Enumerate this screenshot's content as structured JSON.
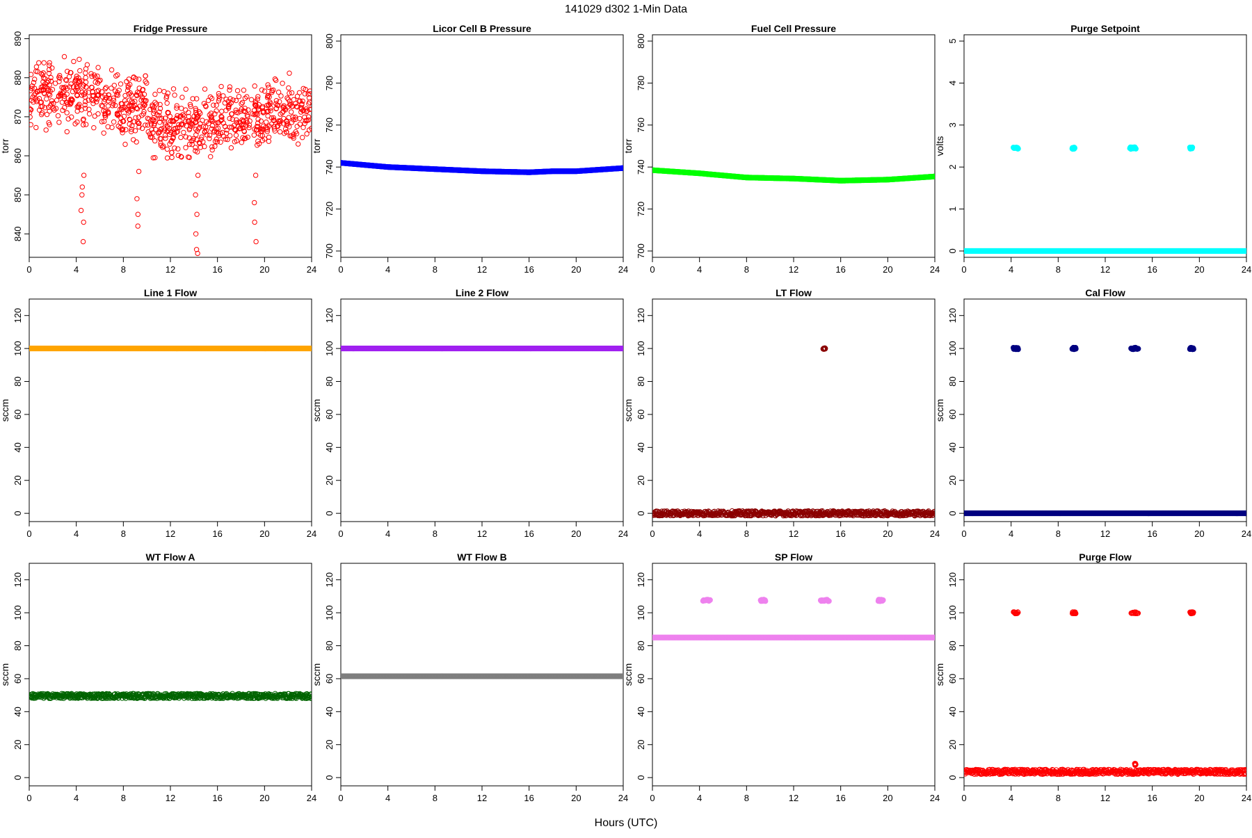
{
  "figure": {
    "title": "141029   d302   1-Min Data",
    "xlabel": "Hours (UTC)"
  },
  "chart_data": [
    {
      "type": "scatter",
      "title": "Fridge Pressure",
      "ylabel": "torr",
      "xlim": [
        0,
        24
      ],
      "ylim": [
        834,
        891
      ],
      "xticks": [
        0,
        4,
        8,
        12,
        16,
        20,
        24
      ],
      "yticks": [
        840,
        850,
        860,
        870,
        880,
        890
      ],
      "color": "#ff0000",
      "marker": "open-circle",
      "series": [
        {
          "segments": [
            {
              "x": [
                0,
                6
              ],
              "y": [
                876,
                876
              ]
            },
            {
              "x": [
                6,
                10
              ],
              "y": [
                873,
                873
              ]
            },
            {
              "x": [
                10,
                14
              ],
              "y": [
                868,
                868
              ]
            },
            {
              "x": [
                14,
                16
              ],
              "y": [
                867,
                867
              ]
            },
            {
              "x": [
                16,
                20
              ],
              "y": [
                869,
                869
              ]
            },
            {
              "x": [
                20,
                24
              ],
              "y": [
                871,
                871
              ]
            }
          ],
          "spread": 6,
          "outliers": [
            {
              "x": 4.5,
              "y": [
                855,
                852,
                850,
                846,
                843,
                838
              ]
            },
            {
              "x": 9.3,
              "y": [
                856,
                849,
                845,
                842
              ]
            },
            {
              "x": 14.2,
              "y": [
                855,
                850,
                845,
                840,
                836,
                835
              ]
            },
            {
              "x": 19.2,
              "y": [
                855,
                848,
                843,
                838
              ]
            }
          ]
        }
      ]
    },
    {
      "type": "scatter",
      "title": "Licor Cell B Pressure",
      "ylabel": "torr",
      "xlim": [
        0,
        24
      ],
      "ylim": [
        697,
        803
      ],
      "xticks": [
        0,
        4,
        8,
        12,
        16,
        20,
        24
      ],
      "yticks": [
        700,
        720,
        740,
        760,
        780,
        800
      ],
      "color": "#0000ff",
      "marker": "filled-circle",
      "series": [
        {
          "x": [
            0,
            4,
            8,
            12,
            16,
            18,
            20,
            24
          ],
          "y": [
            742,
            740,
            739,
            738,
            737.5,
            738,
            738,
            739.5
          ]
        }
      ]
    },
    {
      "type": "scatter",
      "title": "Fuel Cell Pressure",
      "ylabel": "torr",
      "xlim": [
        0,
        24
      ],
      "ylim": [
        697,
        803
      ],
      "xticks": [
        0,
        4,
        8,
        12,
        16,
        20,
        24
      ],
      "yticks": [
        700,
        720,
        740,
        760,
        780,
        800
      ],
      "color": "#00ff00",
      "marker": "filled-circle",
      "series": [
        {
          "x": [
            0,
            4,
            8,
            12,
            16,
            20,
            24
          ],
          "y": [
            738.5,
            737,
            735,
            734.5,
            733.5,
            734,
            735.5
          ]
        }
      ]
    },
    {
      "type": "scatter",
      "title": "Purge Setpoint",
      "ylabel": "volts",
      "xlim": [
        0,
        24
      ],
      "ylim": [
        -0.15,
        5.15
      ],
      "xticks": [
        0,
        4,
        8,
        12,
        16,
        20,
        24
      ],
      "yticks": [
        0,
        1,
        2,
        3,
        4,
        5
      ],
      "color": "#00ffff",
      "marker": "filled-circle",
      "series": [
        {
          "x": [
            0,
            24
          ],
          "y": [
            0,
            0
          ]
        },
        {
          "clusters": [
            {
              "x": [
                4.2,
                4.6
              ],
              "y": 2.45
            },
            {
              "x": [
                9.2,
                9.4
              ],
              "y": 2.45
            },
            {
              "x": [
                14.1,
                14.6
              ],
              "y": 2.45
            },
            {
              "x": [
                19.2,
                19.4
              ],
              "y": 2.45
            }
          ]
        }
      ]
    },
    {
      "type": "scatter",
      "title": "Line 1 Flow",
      "ylabel": "sccm",
      "xlim": [
        0,
        24
      ],
      "ylim": [
        -5,
        130
      ],
      "xticks": [
        0,
        4,
        8,
        12,
        16,
        20,
        24
      ],
      "yticks": [
        0,
        20,
        40,
        60,
        80,
        100,
        120
      ],
      "color": "#ffa500",
      "marker": "filled-circle",
      "series": [
        {
          "x": [
            0,
            24
          ],
          "y": [
            100,
            100
          ]
        }
      ]
    },
    {
      "type": "scatter",
      "title": "Line 2 Flow",
      "ylabel": "sccm",
      "xlim": [
        0,
        24
      ],
      "ylim": [
        -5,
        130
      ],
      "xticks": [
        0,
        4,
        8,
        12,
        16,
        20,
        24
      ],
      "yticks": [
        0,
        20,
        40,
        60,
        80,
        100,
        120
      ],
      "color": "#a020f0",
      "marker": "filled-circle",
      "series": [
        {
          "x": [
            0,
            24
          ],
          "y": [
            100,
            100
          ]
        }
      ]
    },
    {
      "type": "scatter",
      "title": "LT Flow",
      "ylabel": "sccm",
      "xlim": [
        0,
        24
      ],
      "ylim": [
        -5,
        130
      ],
      "xticks": [
        0,
        4,
        8,
        12,
        16,
        20,
        24
      ],
      "yticks": [
        0,
        20,
        40,
        60,
        80,
        100,
        120
      ],
      "color": "#8b0000",
      "marker": "open-circle",
      "series": [
        {
          "x": [
            0,
            24
          ],
          "y": [
            0,
            0
          ],
          "spread": 1.5
        },
        {
          "clusters": [
            {
              "x": [
                14.5,
                14.7
              ],
              "y": 100
            }
          ]
        }
      ]
    },
    {
      "type": "scatter",
      "title": "Cal Flow",
      "ylabel": "sccm",
      "xlim": [
        0,
        24
      ],
      "ylim": [
        -5,
        130
      ],
      "xticks": [
        0,
        4,
        8,
        12,
        16,
        20,
        24
      ],
      "yticks": [
        0,
        20,
        40,
        60,
        80,
        100,
        120
      ],
      "color": "#000080",
      "marker": "filled-circle",
      "series": [
        {
          "x": [
            0,
            24
          ],
          "y": [
            0,
            0
          ]
        },
        {
          "clusters": [
            {
              "x": [
                4.2,
                4.6
              ],
              "y": 100
            },
            {
              "x": [
                9.2,
                9.5
              ],
              "y": 100
            },
            {
              "x": [
                14.2,
                14.8
              ],
              "y": 100
            },
            {
              "x": [
                19.2,
                19.5
              ],
              "y": 100
            }
          ]
        }
      ]
    },
    {
      "type": "scatter",
      "title": "WT Flow A",
      "ylabel": "sccm",
      "xlim": [
        0,
        24
      ],
      "ylim": [
        -5,
        130
      ],
      "xticks": [
        0,
        4,
        8,
        12,
        16,
        20,
        24
      ],
      "yticks": [
        0,
        20,
        40,
        60,
        80,
        100,
        120
      ],
      "color": "#006400",
      "marker": "open-circle",
      "series": [
        {
          "x": [
            0,
            24
          ],
          "y": [
            49.5,
            49.5
          ],
          "spread": 1.5
        }
      ]
    },
    {
      "type": "scatter",
      "title": "WT Flow B",
      "ylabel": "sccm",
      "xlim": [
        0,
        24
      ],
      "ylim": [
        -5,
        130
      ],
      "xticks": [
        0,
        4,
        8,
        12,
        16,
        20,
        24
      ],
      "yticks": [
        0,
        20,
        40,
        60,
        80,
        100,
        120
      ],
      "color": "#7f7f7f",
      "marker": "filled-circle",
      "series": [
        {
          "x": [
            0,
            24
          ],
          "y": [
            61.5,
            61.5
          ]
        }
      ]
    },
    {
      "type": "scatter",
      "title": "SP Flow",
      "ylabel": "sccm",
      "xlim": [
        0,
        24
      ],
      "ylim": [
        -5,
        130
      ],
      "xticks": [
        0,
        4,
        8,
        12,
        16,
        20,
        24
      ],
      "yticks": [
        0,
        20,
        40,
        60,
        80,
        100,
        120
      ],
      "color": "#ee82ee",
      "marker": "filled-circle",
      "series": [
        {
          "x": [
            0,
            24
          ],
          "y": [
            85,
            85
          ]
        },
        {
          "clusters": [
            {
              "x": [
                4.3,
                4.9
              ],
              "y": 107.5
            },
            {
              "x": [
                9.2,
                9.6
              ],
              "y": 107.5
            },
            {
              "x": [
                14.3,
                15.0
              ],
              "y": 107.5
            },
            {
              "x": [
                19.2,
                19.6
              ],
              "y": 107.5
            }
          ]
        }
      ]
    },
    {
      "type": "scatter",
      "title": "Purge Flow",
      "ylabel": "sccm",
      "xlim": [
        0,
        24
      ],
      "ylim": [
        -5,
        130
      ],
      "xticks": [
        0,
        4,
        8,
        12,
        16,
        20,
        24
      ],
      "yticks": [
        0,
        20,
        40,
        60,
        80,
        100,
        120
      ],
      "color": "#ff0000",
      "marker": "open-circle",
      "series": [
        {
          "x": [
            0,
            24
          ],
          "y": [
            3.5,
            3.5
          ],
          "spread": 1.5
        },
        {
          "clusters": [
            {
              "x": [
                4.2,
                4.6
              ],
              "y": 100
            },
            {
              "x": [
                9.2,
                9.5
              ],
              "y": 100
            },
            {
              "x": [
                14.2,
                14.8
              ],
              "y": 100
            },
            {
              "x": [
                19.2,
                19.5
              ],
              "y": 100
            }
          ]
        },
        {
          "clusters": [
            {
              "x": [
                14.5,
                14.6
              ],
              "y": 8
            }
          ]
        }
      ]
    }
  ]
}
